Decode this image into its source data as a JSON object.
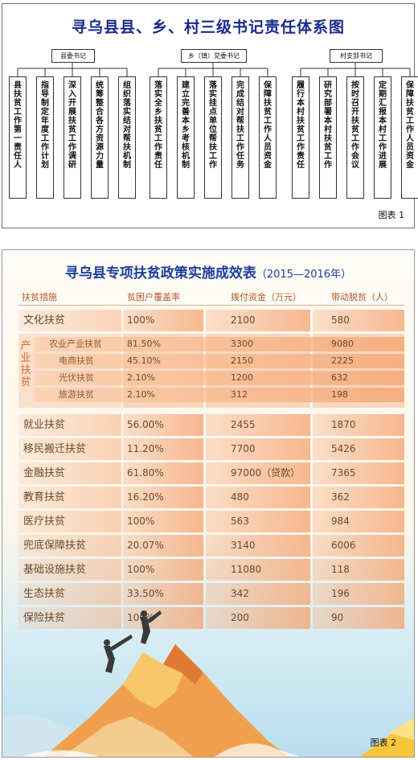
{
  "figure1": {
    "title": "寻乌县县、乡、村三级书记责任体系图",
    "caption": "图表 1",
    "groups": [
      {
        "label": "县委书记",
        "items": [
          "县扶贫工作第一责任人",
          "指导制定年度工作计划",
          "深入开展扶贫工作调研",
          "统筹整合各方资源力量",
          "组织落实结对帮扶机制"
        ]
      },
      {
        "label": "乡（镇）党委书记",
        "items": [
          "落实全乡扶贫工作责任",
          "建立完善本乡考核机制",
          "落实挂点单位帮扶工作",
          "完成结对帮扶工作任务",
          "保障扶贫工作人员资金"
        ]
      },
      {
        "label": "村支部书记",
        "items": [
          "履行本村扶贫工作责任",
          "研究部署本村扶贫工作",
          "按时召开扶贫工作会议",
          "定期汇报本村工作进展",
          "保障扶贫工作人员资金"
        ]
      }
    ]
  },
  "figure2": {
    "title": "寻乌县专项扶贫政策实施成效表",
    "years": "（2015—2016年）",
    "caption": "图表 2",
    "headers": [
      "扶贫措施",
      "贫困户覆盖率",
      "拨付资金（万元）",
      "带动脱贫（人）"
    ],
    "rows_top": [
      {
        "measure": "文化扶贫",
        "coverage": "100%",
        "funds": "2100",
        "lifted": "580"
      }
    ],
    "industry": {
      "label": "产业扶贫",
      "rows": [
        {
          "measure": "农业产业扶贫",
          "coverage": "81.50%",
          "funds": "3300",
          "lifted": "9080"
        },
        {
          "measure": "电商扶贫",
          "coverage": "45.10%",
          "funds": "2150",
          "lifted": "2225"
        },
        {
          "measure": "光伏扶贫",
          "coverage": "2.10%",
          "funds": "1200",
          "lifted": "632"
        },
        {
          "measure": "旅游扶贫",
          "coverage": "2.10%",
          "funds": "312",
          "lifted": "198"
        }
      ]
    },
    "rows_bottom": [
      {
        "measure": "就业扶贫",
        "coverage": "56.00%",
        "funds": "2455",
        "lifted": "1870"
      },
      {
        "measure": "移民搬迁扶贫",
        "coverage": "11.20%",
        "funds": "7700",
        "lifted": "5426"
      },
      {
        "measure": "金融扶贫",
        "coverage": "61.80%",
        "funds": "97000（贷款）",
        "lifted": "7365"
      },
      {
        "measure": "教育扶贫",
        "coverage": "16.20%",
        "funds": "480",
        "lifted": "362"
      },
      {
        "measure": "医疗扶贫",
        "coverage": "100%",
        "funds": "563",
        "lifted": "984"
      },
      {
        "measure": "兜底保障扶贫",
        "coverage": "20.07%",
        "funds": "3140",
        "lifted": "6006"
      },
      {
        "measure": "基础设施扶贫",
        "coverage": "100%",
        "funds": "11080",
        "lifted": "118"
      },
      {
        "measure": "生态扶贫",
        "coverage": "33.50%",
        "funds": "342",
        "lifted": "196"
      },
      {
        "measure": "保险扶贫",
        "coverage": "100%",
        "funds": "200",
        "lifted": "90"
      }
    ]
  },
  "colors": {
    "title_blue": "#1d3f9c",
    "row_orange": "#f4a26e",
    "header_text": "#b5562b",
    "accent": "#d86a2c"
  }
}
